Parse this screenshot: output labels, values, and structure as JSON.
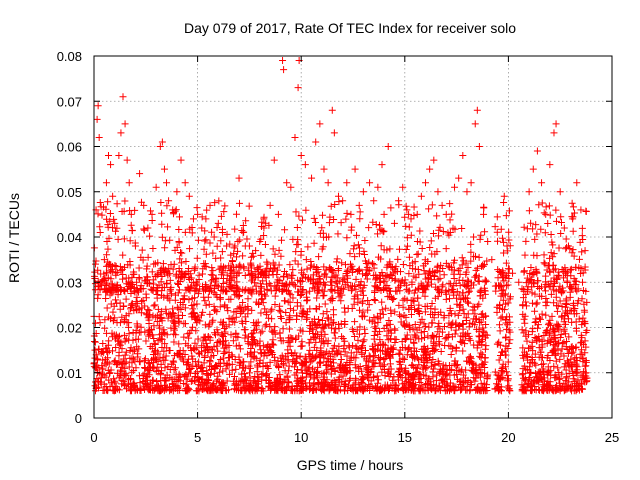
{
  "chart_data": {
    "type": "scatter",
    "title": "Day 079 of 2017, Rate Of TEC Index for receiver solo",
    "xlabel": "GPS time / hours",
    "ylabel": "ROTI / TECUs",
    "xlim": [
      0,
      25
    ],
    "ylim": [
      0,
      0.08
    ],
    "xticks": [
      0,
      5,
      10,
      15,
      20,
      25
    ],
    "xtick_labels": [
      "0",
      "5",
      "10",
      "15",
      "20",
      "25"
    ],
    "yticks": [
      0,
      0.01,
      0.02,
      0.03,
      0.04,
      0.05,
      0.06,
      0.07,
      0.08
    ],
    "ytick_labels": [
      "0",
      "0.01",
      "0.02",
      "0.03",
      "0.04",
      "0.05",
      "0.06",
      "0.07",
      "0.08"
    ],
    "grid": true,
    "marker": "plus",
    "color": "#ff0000",
    "series": [
      {
        "points": [
          [
            0.0,
            0.012
          ],
          [
            0.1,
            0.046
          ],
          [
            0.15,
            0.066
          ],
          [
            0.2,
            0.069
          ],
          [
            0.25,
            0.062
          ],
          [
            0.3,
            0.041
          ],
          [
            0.5,
            0.035
          ],
          [
            0.6,
            0.052
          ],
          [
            0.7,
            0.058
          ],
          [
            0.8,
            0.056
          ],
          [
            0.9,
            0.049
          ],
          [
            1.0,
            0.043
          ],
          [
            1.2,
            0.058
          ],
          [
            1.3,
            0.063
          ],
          [
            1.4,
            0.071
          ],
          [
            1.5,
            0.065
          ],
          [
            1.6,
            0.057
          ],
          [
            1.7,
            0.052
          ],
          [
            1.8,
            0.045
          ],
          [
            2.0,
            0.038
          ],
          [
            2.2,
            0.054
          ],
          [
            2.4,
            0.047
          ],
          [
            2.6,
            0.042
          ],
          [
            2.8,
            0.045
          ],
          [
            3.0,
            0.051
          ],
          [
            3.2,
            0.06
          ],
          [
            3.3,
            0.061
          ],
          [
            3.4,
            0.055
          ],
          [
            3.5,
            0.052
          ],
          [
            3.6,
            0.048
          ],
          [
            3.8,
            0.046
          ],
          [
            4.0,
            0.05
          ],
          [
            4.2,
            0.057
          ],
          [
            4.4,
            0.052
          ],
          [
            4.6,
            0.049
          ],
          [
            4.8,
            0.044
          ],
          [
            5.0,
            0.045
          ],
          [
            5.2,
            0.042
          ],
          [
            5.4,
            0.044
          ],
          [
            5.6,
            0.047
          ],
          [
            5.8,
            0.04
          ],
          [
            6.0,
            0.043
          ],
          [
            6.2,
            0.041
          ],
          [
            6.4,
            0.038
          ],
          [
            6.6,
            0.036
          ],
          [
            6.8,
            0.038
          ],
          [
            7.0,
            0.053
          ],
          [
            7.2,
            0.041
          ],
          [
            7.5,
            0.038
          ],
          [
            7.8,
            0.037
          ],
          [
            8.0,
            0.039
          ],
          [
            8.2,
            0.042
          ],
          [
            8.5,
            0.047
          ],
          [
            8.7,
            0.057
          ],
          [
            8.9,
            0.045
          ],
          [
            9.1,
            0.079
          ],
          [
            9.15,
            0.077
          ],
          [
            9.3,
            0.052
          ],
          [
            9.5,
            0.051
          ],
          [
            9.7,
            0.062
          ],
          [
            9.85,
            0.073
          ],
          [
            9.9,
            0.079
          ],
          [
            10.0,
            0.058
          ],
          [
            10.2,
            0.056
          ],
          [
            10.5,
            0.053
          ],
          [
            10.7,
            0.061
          ],
          [
            10.9,
            0.065
          ],
          [
            11.1,
            0.055
          ],
          [
            11.3,
            0.052
          ],
          [
            11.5,
            0.068
          ],
          [
            11.6,
            0.063
          ],
          [
            11.8,
            0.049
          ],
          [
            12.0,
            0.048
          ],
          [
            12.2,
            0.052
          ],
          [
            12.4,
            0.045
          ],
          [
            12.6,
            0.055
          ],
          [
            12.8,
            0.047
          ],
          [
            13.0,
            0.05
          ],
          [
            13.3,
            0.052
          ],
          [
            13.5,
            0.048
          ],
          [
            13.7,
            0.051
          ],
          [
            13.9,
            0.056
          ],
          [
            14.0,
            0.045
          ],
          [
            14.2,
            0.06
          ],
          [
            14.5,
            0.043
          ],
          [
            14.7,
            0.048
          ],
          [
            14.9,
            0.051
          ],
          [
            15.1,
            0.046
          ],
          [
            15.3,
            0.044
          ],
          [
            15.6,
            0.045
          ],
          [
            15.8,
            0.049
          ],
          [
            16.0,
            0.052
          ],
          [
            16.2,
            0.055
          ],
          [
            16.4,
            0.057
          ],
          [
            16.6,
            0.05
          ],
          [
            16.8,
            0.047
          ],
          [
            17.0,
            0.045
          ],
          [
            17.2,
            0.041
          ],
          [
            17.4,
            0.051
          ],
          [
            17.6,
            0.053
          ],
          [
            17.8,
            0.058
          ],
          [
            18.0,
            0.05
          ],
          [
            18.2,
            0.052
          ],
          [
            18.4,
            0.065
          ],
          [
            18.5,
            0.068
          ],
          [
            18.6,
            0.06
          ],
          [
            18.8,
            0.045
          ],
          [
            19.0,
            0.039
          ],
          [
            19.2,
            0.035
          ],
          [
            19.5,
            0.031
          ],
          [
            19.8,
            0.049
          ],
          [
            20.0,
            0.033
          ],
          [
            20.2,
            0.032
          ],
          [
            20.5,
            0.03
          ],
          [
            20.8,
            0.036
          ],
          [
            21.0,
            0.05
          ],
          [
            21.2,
            0.055
          ],
          [
            21.4,
            0.059
          ],
          [
            21.6,
            0.052
          ],
          [
            21.8,
            0.045
          ],
          [
            22.0,
            0.056
          ],
          [
            22.2,
            0.063
          ],
          [
            22.3,
            0.065
          ],
          [
            22.5,
            0.05
          ],
          [
            22.7,
            0.042
          ],
          [
            22.9,
            0.038
          ],
          [
            23.1,
            0.044
          ],
          [
            23.3,
            0.052
          ],
          [
            23.5,
            0.046
          ],
          [
            23.7,
            0.037
          ]
        ]
      }
    ]
  }
}
